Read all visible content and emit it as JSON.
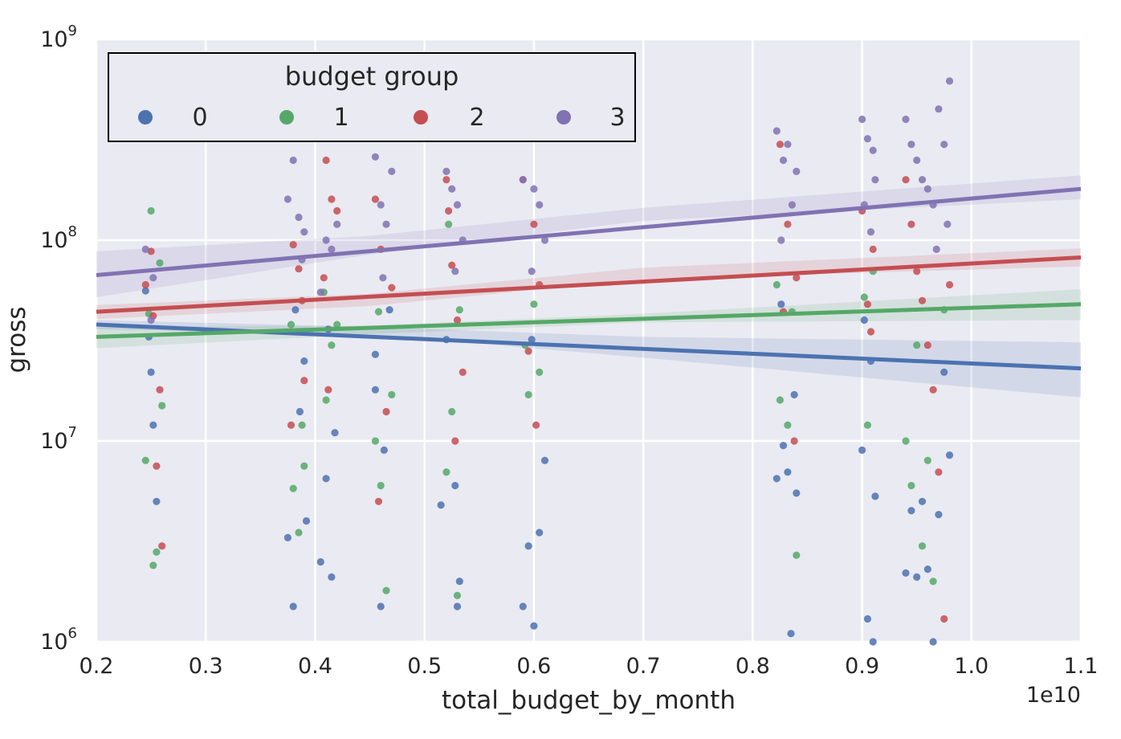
{
  "chart_data": {
    "type": "scatter",
    "title": "",
    "xlabel": "total_budget_by_month",
    "ylabel": "gross",
    "x_offset_label": "1e10",
    "xlim": [
      0.2,
      1.1
    ],
    "ylim": [
      1000000,
      1000000000
    ],
    "yscale": "log",
    "grid": true,
    "x_ticks": [
      0.2,
      0.3,
      0.4,
      0.5,
      0.6,
      0.7,
      0.8,
      0.9,
      1.0,
      1.1
    ],
    "x_tick_labels": [
      "0.2",
      "0.3",
      "0.4",
      "0.5",
      "0.6",
      "0.7",
      "0.8",
      "0.9",
      "1.0",
      "1.1"
    ],
    "y_ticks": [
      {
        "value": 1000000,
        "base": "10",
        "exp": "6"
      },
      {
        "value": 10000000,
        "base": "10",
        "exp": "7"
      },
      {
        "value": 100000000,
        "base": "10",
        "exp": "8"
      },
      {
        "value": 1000000000,
        "base": "10",
        "exp": "9"
      }
    ],
    "legend": {
      "title": "budget group",
      "placement": "top-left",
      "entries": [
        {
          "label": "0",
          "color": "#4c72b0"
        },
        {
          "label": "1",
          "color": "#55a868"
        },
        {
          "label": "2",
          "color": "#c44e52"
        },
        {
          "label": "3",
          "color": "#8172b2"
        }
      ]
    },
    "x_clusters": [
      0.25,
      0.385,
      0.41,
      0.46,
      0.525,
      0.6,
      0.83,
      0.905,
      0.96
    ],
    "series": [
      {
        "name": "0",
        "color": "#4c72b0",
        "fit": {
          "x": [
            0.2,
            1.1
          ],
          "y": [
            38000000,
            23000000
          ]
        },
        "band": {
          "x": [
            0.2,
            0.45,
            0.7,
            1.1
          ],
          "upper": [
            40000000,
            37000000,
            33000000,
            31000000
          ],
          "lower": [
            36000000,
            34000000,
            26000000,
            16500000
          ]
        },
        "points": [
          [
            0.245,
            56000000
          ],
          [
            0.25,
            22000000
          ],
          [
            0.252,
            12000000
          ],
          [
            0.255,
            5000000
          ],
          [
            0.248,
            33000000
          ],
          [
            0.382,
            45000000
          ],
          [
            0.375,
            3300000
          ],
          [
            0.38,
            1500000
          ],
          [
            0.39,
            25000000
          ],
          [
            0.392,
            4000000
          ],
          [
            0.386,
            14000000
          ],
          [
            0.405,
            2500000
          ],
          [
            0.41,
            6500000
          ],
          [
            0.415,
            2100000
          ],
          [
            0.418,
            11000000
          ],
          [
            0.412,
            36000000
          ],
          [
            0.455,
            18000000
          ],
          [
            0.46,
            1500000
          ],
          [
            0.463,
            9000000
          ],
          [
            0.468,
            45000000
          ],
          [
            0.455,
            27000000
          ],
          [
            0.515,
            4800000
          ],
          [
            0.52,
            32000000
          ],
          [
            0.53,
            1500000
          ],
          [
            0.532,
            2000000
          ],
          [
            0.528,
            6000000
          ],
          [
            0.59,
            1500000
          ],
          [
            0.595,
            3000000
          ],
          [
            0.6,
            1200000
          ],
          [
            0.605,
            3500000
          ],
          [
            0.61,
            8000000
          ],
          [
            0.598,
            32000000
          ],
          [
            0.822,
            6500000
          ],
          [
            0.828,
            9500000
          ],
          [
            0.832,
            7000000
          ],
          [
            0.84,
            5500000
          ],
          [
            0.838,
            17000000
          ],
          [
            0.835,
            1100000
          ],
          [
            0.826,
            48000000
          ],
          [
            0.9,
            9000000
          ],
          [
            0.905,
            1300000
          ],
          [
            0.91,
            1000000
          ],
          [
            0.912,
            5300000
          ],
          [
            0.908,
            25000000
          ],
          [
            0.902,
            40000000
          ],
          [
            0.94,
            2200000
          ],
          [
            0.945,
            4500000
          ],
          [
            0.95,
            2100000
          ],
          [
            0.955,
            5000000
          ],
          [
            0.96,
            2300000
          ],
          [
            0.97,
            4300000
          ],
          [
            0.98,
            8500000
          ],
          [
            0.975,
            22000000
          ],
          [
            0.965,
            1000000
          ]
        ]
      },
      {
        "name": "1",
        "color": "#55a868",
        "fit": {
          "x": [
            0.2,
            1.1
          ],
          "y": [
            33000000,
            48000000
          ]
        },
        "band": {
          "x": [
            0.2,
            0.45,
            0.7,
            1.1
          ],
          "upper": [
            37000000,
            37500000,
            43000000,
            57000000
          ],
          "lower": [
            29000000,
            34000000,
            39000000,
            40000000
          ]
        },
        "points": [
          [
            0.25,
            140000000
          ],
          [
            0.255,
            2800000
          ],
          [
            0.252,
            2400000
          ],
          [
            0.245,
            8000000
          ],
          [
            0.26,
            15000000
          ],
          [
            0.258,
            77000000
          ],
          [
            0.248,
            43000000
          ],
          [
            0.38,
            5800000
          ],
          [
            0.385,
            3500000
          ],
          [
            0.388,
            12000000
          ],
          [
            0.39,
            7500000
          ],
          [
            0.378,
            38000000
          ],
          [
            0.41,
            16000000
          ],
          [
            0.415,
            30000000
          ],
          [
            0.42,
            38000000
          ],
          [
            0.408,
            55000000
          ],
          [
            0.455,
            10000000
          ],
          [
            0.46,
            6000000
          ],
          [
            0.465,
            1800000
          ],
          [
            0.47,
            17000000
          ],
          [
            0.458,
            44000000
          ],
          [
            0.52,
            7000000
          ],
          [
            0.525,
            14000000
          ],
          [
            0.53,
            1700000
          ],
          [
            0.532,
            45000000
          ],
          [
            0.522,
            120000000
          ],
          [
            0.595,
            17000000
          ],
          [
            0.605,
            22000000
          ],
          [
            0.6,
            48000000
          ],
          [
            0.592,
            30000000
          ],
          [
            0.825,
            16000000
          ],
          [
            0.832,
            12000000
          ],
          [
            0.84,
            2700000
          ],
          [
            0.836,
            44000000
          ],
          [
            0.822,
            60000000
          ],
          [
            0.905,
            12000000
          ],
          [
            0.91,
            70000000
          ],
          [
            0.902,
            52000000
          ],
          [
            0.94,
            10000000
          ],
          [
            0.945,
            6000000
          ],
          [
            0.955,
            3000000
          ],
          [
            0.96,
            8000000
          ],
          [
            0.965,
            2000000
          ],
          [
            0.975,
            45000000
          ],
          [
            0.95,
            30000000
          ]
        ]
      },
      {
        "name": "2",
        "color": "#c44e52",
        "fit": {
          "x": [
            0.2,
            1.1
          ],
          "y": [
            44000000,
            82000000
          ]
        },
        "band": {
          "x": [
            0.2,
            0.45,
            0.7,
            1.1
          ],
          "upper": [
            47500000,
            54000000,
            73000000,
            91000000
          ],
          "lower": [
            40500000,
            47000000,
            64000000,
            74000000
          ]
        },
        "points": [
          [
            0.25,
            88000000
          ],
          [
            0.26,
            3000000
          ],
          [
            0.255,
            7500000
          ],
          [
            0.245,
            60000000
          ],
          [
            0.258,
            18000000
          ],
          [
            0.252,
            42000000
          ],
          [
            0.38,
            95000000
          ],
          [
            0.385,
            72000000
          ],
          [
            0.39,
            20000000
          ],
          [
            0.378,
            12000000
          ],
          [
            0.388,
            50000000
          ],
          [
            0.41,
            250000000
          ],
          [
            0.415,
            160000000
          ],
          [
            0.42,
            140000000
          ],
          [
            0.408,
            65000000
          ],
          [
            0.412,
            18000000
          ],
          [
            0.455,
            160000000
          ],
          [
            0.46,
            90000000
          ],
          [
            0.465,
            14000000
          ],
          [
            0.47,
            58000000
          ],
          [
            0.458,
            5000000
          ],
          [
            0.52,
            200000000
          ],
          [
            0.525,
            75000000
          ],
          [
            0.53,
            40000000
          ],
          [
            0.528,
            10000000
          ],
          [
            0.535,
            22000000
          ],
          [
            0.522,
            140000000
          ],
          [
            0.59,
            200000000
          ],
          [
            0.6,
            120000000
          ],
          [
            0.605,
            60000000
          ],
          [
            0.595,
            28000000
          ],
          [
            0.602,
            12000000
          ],
          [
            0.825,
            300000000
          ],
          [
            0.832,
            120000000
          ],
          [
            0.84,
            65000000
          ],
          [
            0.838,
            10000000
          ],
          [
            0.828,
            44000000
          ],
          [
            0.9,
            140000000
          ],
          [
            0.91,
            90000000
          ],
          [
            0.905,
            48000000
          ],
          [
            0.908,
            35000000
          ],
          [
            0.94,
            200000000
          ],
          [
            0.945,
            120000000
          ],
          [
            0.95,
            70000000
          ],
          [
            0.955,
            50000000
          ],
          [
            0.96,
            30000000
          ],
          [
            0.965,
            18000000
          ],
          [
            0.97,
            7000000
          ],
          [
            0.975,
            1300000
          ],
          [
            0.98,
            60000000
          ]
        ]
      },
      {
        "name": "3",
        "color": "#8172b2",
        "fit": {
          "x": [
            0.2,
            1.1
          ],
          "y": [
            67000000,
            180000000
          ]
        },
        "band": {
          "x": [
            0.2,
            0.45,
            0.7,
            1.1
          ],
          "upper": [
            88000000,
            105000000,
            145000000,
            210000000
          ],
          "lower": [
            52000000,
            85000000,
            125000000,
            160000000
          ]
        },
        "points": [
          [
            0.245,
            90000000
          ],
          [
            0.25,
            40000000
          ],
          [
            0.252,
            65000000
          ],
          [
            0.375,
            160000000
          ],
          [
            0.38,
            250000000
          ],
          [
            0.385,
            130000000
          ],
          [
            0.39,
            110000000
          ],
          [
            0.388,
            80000000
          ],
          [
            0.41,
            100000000
          ],
          [
            0.415,
            90000000
          ],
          [
            0.42,
            120000000
          ],
          [
            0.405,
            55000000
          ],
          [
            0.455,
            260000000
          ],
          [
            0.46,
            150000000
          ],
          [
            0.465,
            120000000
          ],
          [
            0.47,
            220000000
          ],
          [
            0.462,
            65000000
          ],
          [
            0.52,
            220000000
          ],
          [
            0.525,
            180000000
          ],
          [
            0.53,
            150000000
          ],
          [
            0.535,
            100000000
          ],
          [
            0.528,
            70000000
          ],
          [
            0.59,
            200000000
          ],
          [
            0.6,
            180000000
          ],
          [
            0.605,
            150000000
          ],
          [
            0.61,
            100000000
          ],
          [
            0.598,
            70000000
          ],
          [
            0.822,
            350000000
          ],
          [
            0.828,
            250000000
          ],
          [
            0.832,
            300000000
          ],
          [
            0.84,
            220000000
          ],
          [
            0.836,
            150000000
          ],
          [
            0.826,
            100000000
          ],
          [
            0.9,
            400000000
          ],
          [
            0.905,
            320000000
          ],
          [
            0.91,
            280000000
          ],
          [
            0.912,
            200000000
          ],
          [
            0.902,
            150000000
          ],
          [
            0.908,
            110000000
          ],
          [
            0.94,
            400000000
          ],
          [
            0.945,
            300000000
          ],
          [
            0.95,
            250000000
          ],
          [
            0.955,
            200000000
          ],
          [
            0.96,
            180000000
          ],
          [
            0.965,
            150000000
          ],
          [
            0.97,
            450000000
          ],
          [
            0.975,
            300000000
          ],
          [
            0.98,
            620000000
          ],
          [
            0.978,
            120000000
          ],
          [
            0.968,
            90000000
          ]
        ]
      }
    ]
  }
}
